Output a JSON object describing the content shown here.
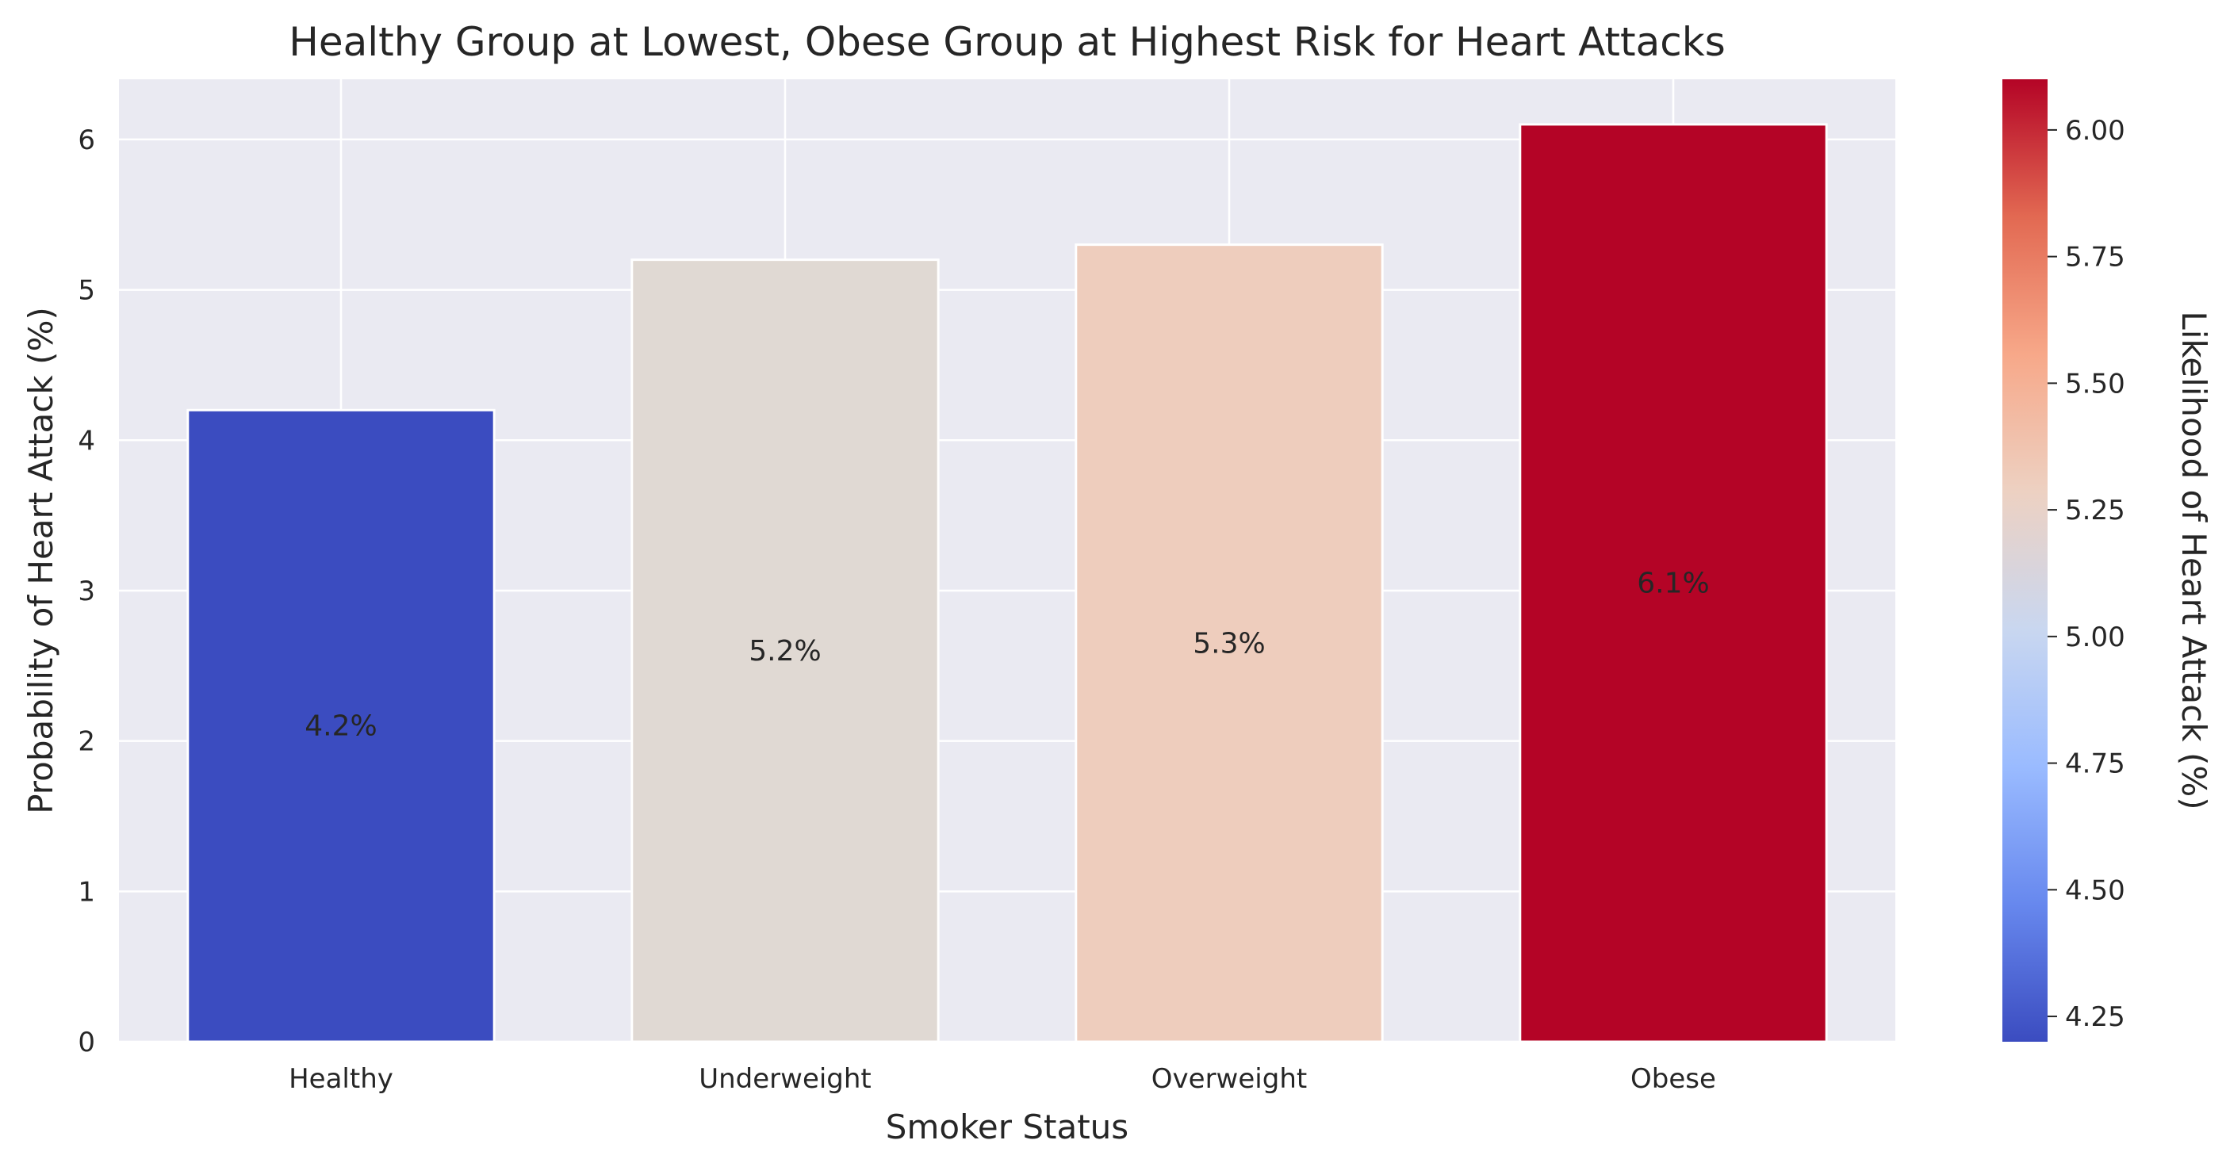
{
  "chart_data": {
    "type": "bar",
    "title": "Healthy Group at Lowest, Obese Group at Highest Risk for Heart Attacks",
    "xlabel": "Smoker Status",
    "ylabel": "Probability of Heart Attack (%)",
    "categories": [
      "Healthy",
      "Underweight",
      "Overweight",
      "Obese"
    ],
    "values": [
      4.2,
      5.2,
      5.3,
      6.1
    ],
    "data_labels": [
      "4.2%",
      "5.2%",
      "5.3%",
      "6.1%"
    ],
    "bar_colors": [
      "#3b4cc0",
      "#e0d9d3",
      "#eecdbd",
      "#b40426"
    ],
    "ylim": [
      0,
      6.4
    ],
    "yticks": [
      0,
      1,
      2,
      3,
      4,
      5,
      6
    ],
    "ytick_labels": [
      "0",
      "1",
      "2",
      "3",
      "4",
      "5",
      "6"
    ],
    "grid": true,
    "plot_background": "#eaeaf2",
    "colorbar": {
      "label": "Likelihood of Heart Attack (%)",
      "colormap": "coolwarm",
      "range": [
        4.2,
        6.1
      ],
      "ticks": [
        4.25,
        4.5,
        4.75,
        5.0,
        5.25,
        5.5,
        5.75,
        6.0
      ],
      "tick_labels": [
        "4.25",
        "4.50",
        "4.75",
        "5.00",
        "5.25",
        "5.50",
        "5.75",
        "6.00"
      ],
      "stops": [
        "#3b4cc0",
        "#6788ee",
        "#9abbff",
        "#c9d7f0",
        "#edd1c2",
        "#f7a889",
        "#e26952",
        "#b40426"
      ]
    }
  }
}
